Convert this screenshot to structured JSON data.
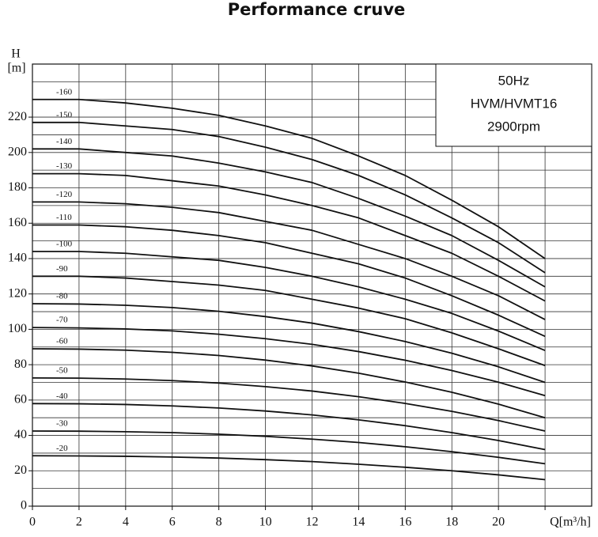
{
  "chart_data": {
    "type": "line",
    "title": "Performance cruve",
    "y_label": "H",
    "y_label_unit": "[m]",
    "info_box": [
      "50Hz",
      "HVM/HVMT16",
      "2900rpm"
    ],
    "x": [
      0,
      2,
      4,
      6,
      8,
      10,
      12,
      14,
      16,
      18,
      20,
      22
    ],
    "xlim": [
      0,
      24
    ],
    "xticks": [
      0,
      2,
      4,
      6,
      8,
      10,
      12,
      14,
      16,
      18,
      20,
      {
        "value": 22,
        "label": "Q[m³/h]"
      }
    ],
    "ylim": [
      0,
      250
    ],
    "yticks": [
      0,
      20,
      40,
      60,
      80,
      100,
      120,
      140,
      160,
      180,
      200,
      220
    ],
    "minor_yticks": [
      10,
      30,
      50,
      70,
      90,
      110,
      130,
      150,
      170,
      190,
      210,
      230,
      240
    ],
    "grid": true,
    "color": "#111111",
    "series": [
      {
        "name": "-160",
        "values": [
          230,
          230,
          228,
          225,
          221,
          215,
          208,
          198,
          187,
          173,
          158,
          140
        ]
      },
      {
        "name": "-150",
        "values": [
          217,
          217,
          215,
          213,
          209,
          203,
          196,
          187,
          176,
          163,
          149,
          132
        ]
      },
      {
        "name": "-140",
        "values": [
          202,
          202,
          200,
          198,
          194,
          189,
          183,
          174,
          164,
          153,
          139,
          124
        ]
      },
      {
        "name": "-130",
        "values": [
          188,
          188,
          187,
          184,
          181,
          176,
          170,
          163,
          153,
          143,
          130,
          116
        ]
      },
      {
        "name": "-120",
        "values": [
          172,
          172,
          171,
          169,
          166,
          161,
          156,
          148,
          140,
          130,
          119,
          105.5
        ]
      },
      {
        "name": "-110",
        "values": [
          159,
          159,
          158,
          156,
          153,
          149,
          143,
          137,
          129,
          119,
          108,
          96
        ]
      },
      {
        "name": "-100",
        "values": [
          144,
          144,
          143,
          141,
          139,
          135,
          130,
          124,
          117,
          109,
          99,
          88
        ]
      },
      {
        "name": "-90",
        "values": [
          130,
          130,
          129,
          127,
          125,
          122,
          117,
          112,
          106,
          98,
          89,
          79.5
        ]
      },
      {
        "name": "-80",
        "values": [
          114.5,
          114.3,
          113.6,
          112.3,
          110.2,
          107.2,
          103.5,
          98.7,
          93.1,
          86.5,
          78.8,
          70
        ]
      },
      {
        "name": "-70",
        "values": [
          101,
          100.8,
          100.2,
          99.1,
          97.2,
          94.7,
          91.5,
          87.4,
          82.5,
          76.7,
          70.1,
          62.5
        ]
      },
      {
        "name": "-60",
        "values": [
          89,
          88.8,
          88.2,
          87,
          85.2,
          82.6,
          79.3,
          75.2,
          70.2,
          64.4,
          57.7,
          50
        ]
      },
      {
        "name": "-50",
        "values": [
          72.5,
          72.4,
          71.9,
          71,
          69.6,
          67.6,
          65.1,
          61.9,
          58.1,
          53.6,
          48.4,
          42.5
        ]
      },
      {
        "name": "-40",
        "values": [
          58,
          57.9,
          57.5,
          56.7,
          55.5,
          53.8,
          51.6,
          48.8,
          45.5,
          41.6,
          37.1,
          32
        ]
      },
      {
        "name": "-30",
        "values": [
          42.5,
          42.4,
          42.1,
          41.6,
          40.7,
          39.5,
          37.9,
          36,
          33.6,
          30.8,
          27.6,
          24
        ]
      },
      {
        "name": "-20",
        "values": [
          28.5,
          28.4,
          28.2,
          27.8,
          27.2,
          26.3,
          25.2,
          23.7,
          22,
          20,
          17.7,
          15
        ]
      }
    ]
  }
}
